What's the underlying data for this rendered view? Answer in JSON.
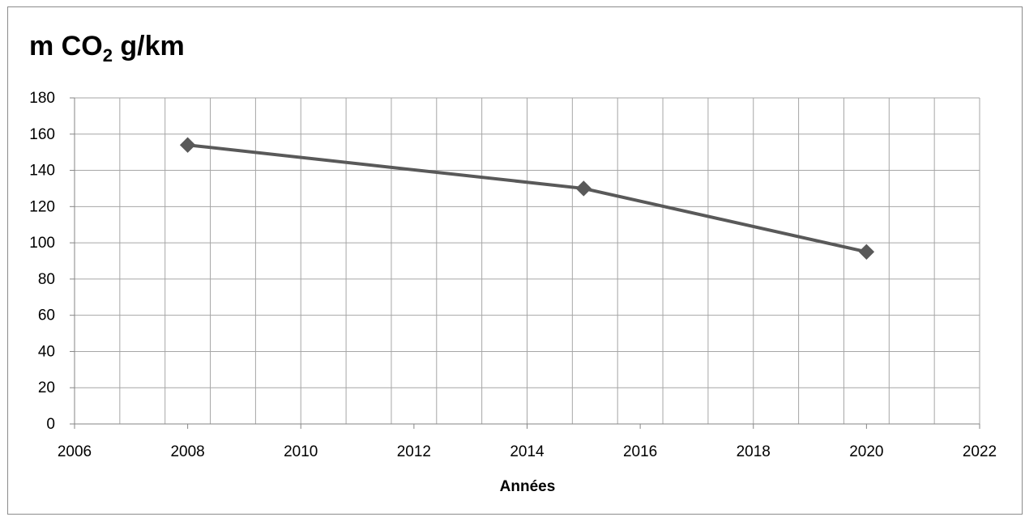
{
  "chart_data": {
    "type": "line",
    "title": {
      "prefix": "m CO",
      "subscript": "2",
      "suffix": " g/km"
    },
    "xlabel": "Années",
    "ylabel": "",
    "xlim": [
      2006,
      2022
    ],
    "ylim": [
      0,
      180
    ],
    "x_ticks": [
      2006,
      2008,
      2010,
      2012,
      2014,
      2016,
      2018,
      2020,
      2022
    ],
    "y_ticks": [
      0,
      20,
      40,
      60,
      80,
      100,
      120,
      140,
      160,
      180
    ],
    "x_grid_step": 0.8,
    "y_grid_step": 20,
    "grid": true,
    "legend": "none",
    "colors": {
      "line": "#595959",
      "marker": "#595959",
      "grid": "#a6a6a6",
      "axis": "#868686"
    },
    "series": [
      {
        "marker": "diamond",
        "x": [
          2008,
          2015,
          2020
        ],
        "y": [
          154,
          130,
          95
        ]
      }
    ]
  }
}
